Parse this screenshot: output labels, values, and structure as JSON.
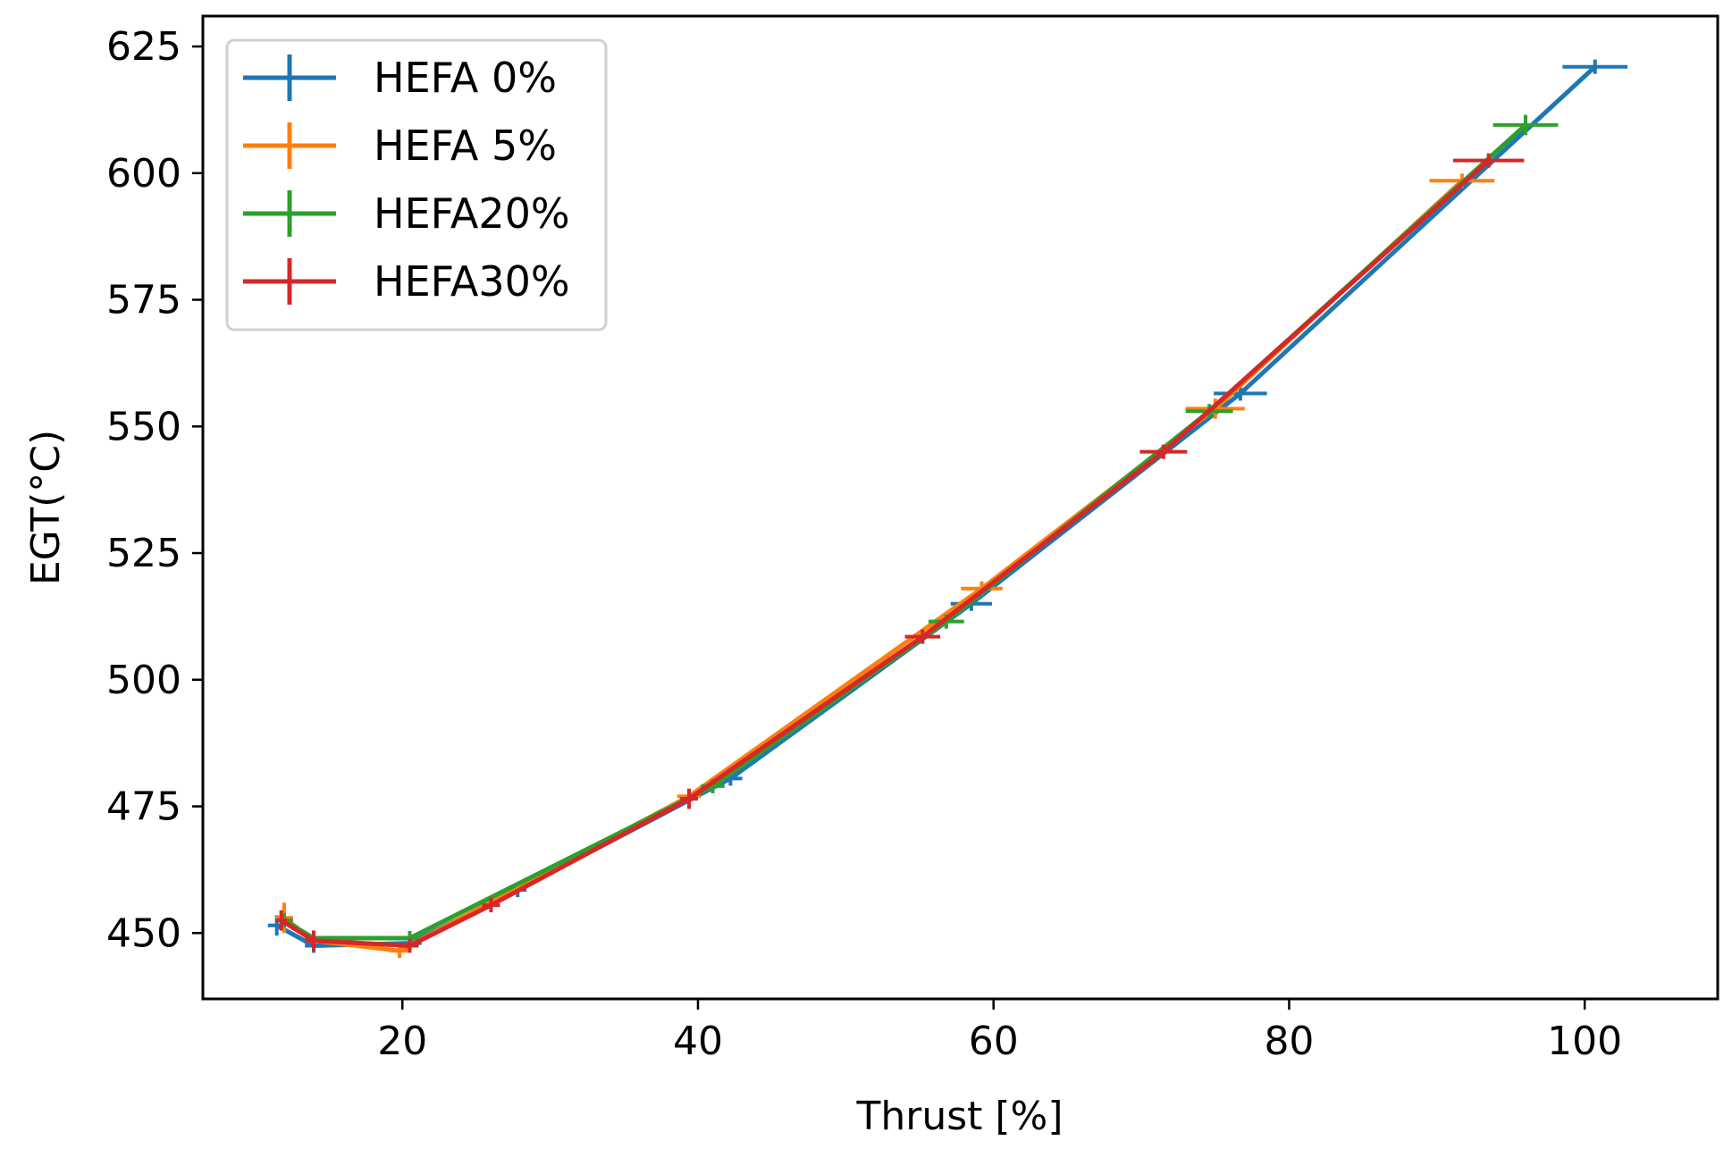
{
  "chart_data": {
    "type": "line",
    "title": "",
    "xlabel": "Thrust [%]",
    "ylabel": "EGT(°C)",
    "xlim": [
      6.5,
      109
    ],
    "ylim": [
      437,
      631
    ],
    "xticks": [
      20,
      40,
      60,
      80,
      100
    ],
    "yticks": [
      450,
      475,
      500,
      525,
      550,
      575,
      600,
      625
    ],
    "grid": false,
    "legend_position": "top-left",
    "error_bars": "horizontal and vertical (markers drawn as crosses)",
    "series": [
      {
        "name": "HEFA 0%",
        "color": "#1f77b4",
        "points": [
          {
            "x": 11.5,
            "y": 451.5,
            "xerr": 0.6,
            "yerr": 2
          },
          {
            "x": 14.0,
            "y": 447.5,
            "xerr": 0.6,
            "yerr": 1
          },
          {
            "x": 20.5,
            "y": 448.0,
            "xerr": 0.8,
            "yerr": 1
          },
          {
            "x": 27.8,
            "y": 458.5,
            "xerr": 0.6,
            "yerr": 1
          },
          {
            "x": 42.2,
            "y": 480.5,
            "xerr": 0.8,
            "yerr": 1
          },
          {
            "x": 58.5,
            "y": 515.0,
            "xerr": 1.4,
            "yerr": 1
          },
          {
            "x": 76.7,
            "y": 556.5,
            "xerr": 1.8,
            "yerr": 1
          },
          {
            "x": 100.7,
            "y": 621.0,
            "xerr": 2.2,
            "yerr": 1
          }
        ]
      },
      {
        "name": "HEFA 5%",
        "color": "#ff7f0e",
        "points": [
          {
            "x": 12.0,
            "y": 453.0,
            "xerr": 0.6,
            "yerr": 3
          },
          {
            "x": 14.0,
            "y": 448.5,
            "xerr": 0.6,
            "yerr": 1
          },
          {
            "x": 19.8,
            "y": 446.5,
            "xerr": 0.6,
            "yerr": 1
          },
          {
            "x": 39.4,
            "y": 477.0,
            "xerr": 0.8,
            "yerr": 1
          },
          {
            "x": 59.2,
            "y": 518.0,
            "xerr": 1.4,
            "yerr": 1
          },
          {
            "x": 75.0,
            "y": 553.5,
            "xerr": 2.0,
            "yerr": 2
          },
          {
            "x": 91.7,
            "y": 598.5,
            "xerr": 2.2,
            "yerr": 1
          }
        ]
      },
      {
        "name": "HEFA20%",
        "color": "#2ca02c",
        "points": [
          {
            "x": 12.0,
            "y": 452.5,
            "xerr": 0.6,
            "yerr": 1
          },
          {
            "x": 14.0,
            "y": 449.0,
            "xerr": 0.6,
            "yerr": 1
          },
          {
            "x": 20.5,
            "y": 449.0,
            "xerr": 0.6,
            "yerr": 1
          },
          {
            "x": 41.0,
            "y": 479.0,
            "xerr": 0.8,
            "yerr": 1
          },
          {
            "x": 56.8,
            "y": 511.5,
            "xerr": 1.2,
            "yerr": 1
          },
          {
            "x": 74.6,
            "y": 553.0,
            "xerr": 1.6,
            "yerr": 1
          },
          {
            "x": 96.0,
            "y": 609.5,
            "xerr": 2.2,
            "yerr": 2
          }
        ]
      },
      {
        "name": "HEFA30%",
        "color": "#d62728",
        "points": [
          {
            "x": 11.8,
            "y": 452.5,
            "xerr": 0.4,
            "yerr": 2
          },
          {
            "x": 14.0,
            "y": 448.5,
            "xerr": 0.6,
            "yerr": 2
          },
          {
            "x": 20.5,
            "y": 447.5,
            "xerr": 0.6,
            "yerr": 1
          },
          {
            "x": 26.0,
            "y": 455.5,
            "xerr": 0.6,
            "yerr": 1
          },
          {
            "x": 39.4,
            "y": 476.5,
            "xerr": 0.6,
            "yerr": 2
          },
          {
            "x": 55.2,
            "y": 508.5,
            "xerr": 1.2,
            "yerr": 1
          },
          {
            "x": 71.5,
            "y": 545.0,
            "xerr": 1.6,
            "yerr": 1
          },
          {
            "x": 93.5,
            "y": 602.5,
            "xerr": 2.4,
            "yerr": 1
          }
        ]
      }
    ]
  }
}
